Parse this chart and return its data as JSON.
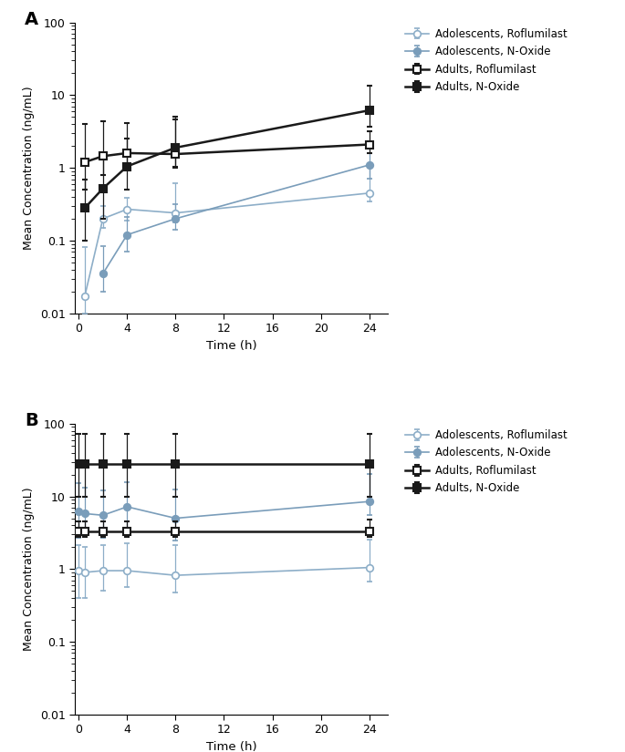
{
  "panel_A": {
    "time": [
      0.5,
      2,
      4,
      8,
      24
    ],
    "adol_roflumilast": {
      "y": [
        0.017,
        0.2,
        0.27,
        0.24,
        0.45
      ],
      "yerr_lo": [
        0.007,
        0.05,
        0.08,
        0.06,
        0.1
      ],
      "yerr_hi": [
        0.065,
        0.1,
        0.12,
        0.38,
        0.65
      ]
    },
    "adol_noxide": {
      "y": [
        null,
        0.035,
        0.12,
        0.2,
        1.1
      ],
      "yerr_lo": [
        null,
        0.015,
        0.05,
        0.06,
        0.38
      ],
      "yerr_hi": [
        null,
        0.05,
        0.09,
        0.12,
        0.5
      ]
    },
    "adults_roflumilast": {
      "y": [
        1.2,
        1.45,
        1.6,
        1.55,
        2.1
      ],
      "yerr_lo": [
        0.7,
        0.65,
        0.65,
        0.5,
        0.5
      ],
      "yerr_hi": [
        2.8,
        3.0,
        2.5,
        3.5,
        1.1
      ]
    },
    "adults_noxide": {
      "y": [
        0.28,
        0.52,
        1.05,
        1.9,
        6.2
      ],
      "yerr_lo": [
        0.18,
        0.32,
        0.55,
        0.9,
        2.5
      ],
      "yerr_hi": [
        0.42,
        0.8,
        1.45,
        2.8,
        7.5
      ]
    }
  },
  "panel_B": {
    "time": [
      0,
      0.5,
      2,
      4,
      8,
      24
    ],
    "adol_roflumilast": {
      "y": [
        0.95,
        0.9,
        0.95,
        0.95,
        0.82,
        1.05
      ],
      "yerr_lo": [
        0.55,
        0.5,
        0.45,
        0.38,
        0.35,
        0.38
      ],
      "yerr_hi": [
        1.2,
        1.1,
        1.2,
        1.3,
        1.3,
        1.5
      ]
    },
    "adol_noxide": {
      "y": [
        6.2,
        5.8,
        5.5,
        7.2,
        5.0,
        8.5
      ],
      "yerr_lo": [
        3.5,
        3.0,
        2.8,
        3.5,
        2.5,
        3.0
      ],
      "yerr_hi": [
        9.0,
        7.5,
        6.5,
        8.5,
        7.5,
        12.0
      ]
    },
    "adults_roflumilast": {
      "y": [
        3.3,
        3.3,
        3.3,
        3.3,
        3.3,
        3.3
      ],
      "yerr_lo": [
        0.5,
        0.5,
        0.5,
        0.5,
        0.5,
        0.5
      ],
      "yerr_hi": [
        1.2,
        1.2,
        1.2,
        1.2,
        1.2,
        1.5
      ]
    },
    "adults_noxide": {
      "y": [
        28,
        28,
        28,
        28,
        28,
        28
      ],
      "yerr_lo": [
        18,
        18,
        18,
        18,
        18,
        18
      ],
      "yerr_hi": [
        45,
        45,
        45,
        45,
        45,
        45
      ]
    }
  },
  "blue_open": "#8daec8",
  "blue_fill": "#7a9dba",
  "black": "#1a1a1a",
  "ylabel": "Mean Concentration (ng/mL)",
  "xlabel": "Time (h)",
  "legend_labels": [
    "Adolescents, Roflumilast",
    "Adolescents, N-Oxide",
    "Adults, Roflumilast",
    "Adults, N-Oxide"
  ]
}
